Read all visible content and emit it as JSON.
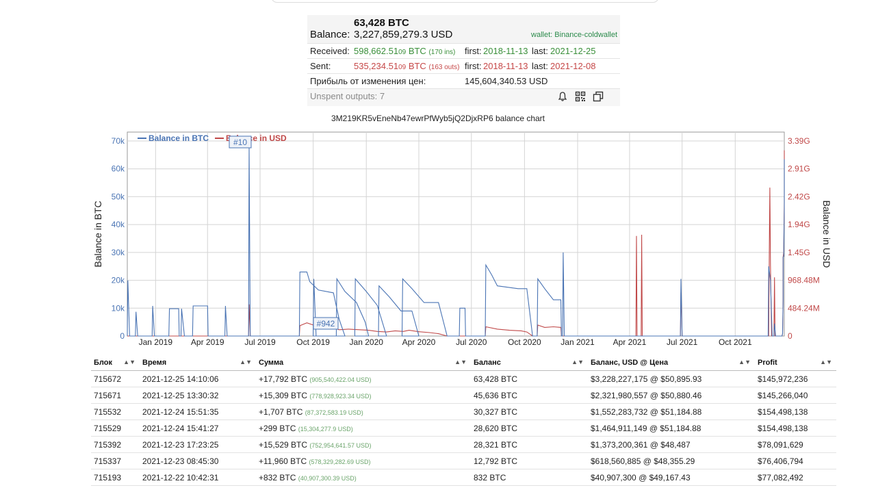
{
  "summary": {
    "btc": "63,428 BTC",
    "balance_label": "Balance:",
    "balance_usd": "3,227,859,279.3 USD",
    "wallet": "wallet: Binance-coldwallet",
    "received_label": "Received:",
    "received_main": "598,662.51",
    "received_sub": "09",
    "received_unit": " BTC",
    "received_ins": "(170 ins)",
    "received_first_label": "first:",
    "received_first": "2018-11-13",
    "received_last_label": "last:",
    "received_last": "2021-12-25",
    "sent_label": "Sent:",
    "sent_main": "535,234.51",
    "sent_sub": "09",
    "sent_unit": " BTC",
    "sent_outs": "(163 outs)",
    "sent_first_label": "first:",
    "sent_first": "2018-11-13",
    "sent_last_label": "last:",
    "sent_last": "2021-12-08",
    "profit_label": "Прибыль от изменения цен:",
    "profit_value": "145,604,340.53 USD",
    "unspent": "Unspent outputs: 7",
    "icons": [
      "bell-icon",
      "qr-code-icon",
      "copy-icon"
    ]
  },
  "chart_data": {
    "type": "line",
    "title": "3M219KR5vEneNb47ewrPfWyb5jQ2DjxRP6 balance chart",
    "ylabel": "Balance in BTC",
    "y2label": "Balance in USD",
    "x_ticks": [
      "Jan 2019",
      "Apr 2019",
      "Jul 2019",
      "Oct 2019",
      "Jan 2020",
      "Apr 2020",
      "Jul 2020",
      "Oct 2020",
      "Jan 2021",
      "Apr 2021",
      "Jul 2021",
      "Oct 2021"
    ],
    "y_ticks": [
      "0",
      "10k",
      "20k",
      "30k",
      "40k",
      "50k",
      "60k",
      "70k"
    ],
    "y2_ticks": [
      "0",
      "484.24M",
      "968.48M",
      "1.45G",
      "1.94G",
      "2.42G",
      "2.91G",
      "3.39G"
    ],
    "ylim": [
      0,
      70000
    ],
    "y2lim": [
      0,
      3390000000
    ],
    "xlim": [
      "2018-11-13",
      "2021-12-25"
    ],
    "legend": "top-left",
    "grid": true,
    "annotations": [
      "#10",
      "#942"
    ],
    "series": [
      {
        "name": "Balance in BTC",
        "color": "#4a74b4",
        "points": [
          [
            "2018-11-13",
            0
          ],
          [
            "2018-11-14",
            20000
          ],
          [
            "2018-11-17",
            0
          ],
          [
            "2018-11-27",
            0
          ],
          [
            "2018-11-28",
            8700
          ],
          [
            "2018-12-01",
            0
          ],
          [
            "2018-12-26",
            0
          ],
          [
            "2018-12-27",
            10800
          ],
          [
            "2018-12-30",
            0
          ],
          [
            "2019-01-24",
            0
          ],
          [
            "2019-01-25",
            9800
          ],
          [
            "2019-02-10",
            9800
          ],
          [
            "2019-02-11",
            0
          ],
          [
            "2019-02-14",
            0
          ],
          [
            "2019-02-15",
            9800
          ],
          [
            "2019-02-20",
            0
          ],
          [
            "2019-03-06",
            0
          ],
          [
            "2019-03-07",
            10800
          ],
          [
            "2019-04-01",
            10800
          ],
          [
            "2019-04-02",
            0
          ],
          [
            "2019-05-01",
            0
          ],
          [
            "2019-05-02",
            10800
          ],
          [
            "2019-05-05",
            0
          ],
          [
            "2019-06-11",
            0
          ],
          [
            "2019-06-12",
            67700
          ],
          [
            "2019-06-14",
            0
          ],
          [
            "2019-09-07",
            0
          ],
          [
            "2019-09-08",
            23000
          ],
          [
            "2019-09-20",
            23000
          ],
          [
            "2019-09-25",
            19500
          ],
          [
            "2019-10-10",
            16500
          ],
          [
            "2019-11-05",
            15500
          ],
          [
            "2019-11-15",
            6000
          ],
          [
            "2019-11-25",
            0
          ],
          [
            "2019-10-01",
            0
          ],
          [
            "2019-10-02",
            20500
          ],
          [
            "2019-10-06",
            0
          ],
          [
            "2019-11-10",
            0
          ],
          [
            "2019-11-11",
            20500
          ],
          [
            "2019-11-25",
            16000
          ],
          [
            "2019-12-15",
            12000
          ],
          [
            "2019-12-30",
            5000
          ],
          [
            "2020-01-05",
            0
          ],
          [
            "2019-12-12",
            0
          ],
          [
            "2019-12-13",
            20500
          ],
          [
            "2020-01-01",
            16000
          ],
          [
            "2020-01-20",
            11000
          ],
          [
            "2020-02-05",
            0
          ],
          [
            "2020-01-22",
            0
          ],
          [
            "2020-01-23",
            18000
          ],
          [
            "2020-02-10",
            14000
          ],
          [
            "2020-03-01",
            9000
          ],
          [
            "2020-03-20",
            9000
          ],
          [
            "2020-04-01",
            0
          ],
          [
            "2020-03-03",
            0
          ],
          [
            "2020-03-04",
            20500
          ],
          [
            "2020-03-20",
            17000
          ],
          [
            "2020-04-10",
            12000
          ],
          [
            "2020-05-05",
            12000
          ],
          [
            "2020-05-20",
            0
          ],
          [
            "2020-06-10",
            0
          ],
          [
            "2020-06-11",
            10000
          ],
          [
            "2020-06-20",
            10000
          ],
          [
            "2020-06-21",
            0
          ],
          [
            "2020-07-25",
            0
          ],
          [
            "2020-07-26",
            25500
          ],
          [
            "2020-08-05",
            22000
          ],
          [
            "2020-08-15",
            18000
          ],
          [
            "2020-09-20",
            17000
          ],
          [
            "2020-10-05",
            17000
          ],
          [
            "2020-10-15",
            0
          ],
          [
            "2020-10-23",
            0
          ],
          [
            "2020-10-24",
            20500
          ],
          [
            "2020-11-05",
            17000
          ],
          [
            "2020-11-20",
            13000
          ],
          [
            "2020-12-03",
            13000
          ],
          [
            "2020-12-04",
            0
          ],
          [
            "2020-12-06",
            0
          ],
          [
            "2020-12-07",
            30000
          ],
          [
            "2020-12-09",
            0
          ],
          [
            "2021-06-28",
            0
          ],
          [
            "2021-06-29",
            20500
          ],
          [
            "2021-07-01",
            0
          ],
          [
            "2021-11-27",
            0
          ],
          [
            "2021-11-28",
            25000
          ],
          [
            "2021-12-01",
            20000
          ],
          [
            "2021-12-04",
            0
          ],
          [
            "2021-12-07",
            0
          ],
          [
            "2021-12-08",
            4500
          ],
          [
            "2021-12-10",
            0
          ],
          [
            "2021-12-21",
            0
          ],
          [
            "2021-12-22",
            832
          ],
          [
            "2021-12-23",
            12792
          ],
          [
            "2021-12-23",
            28321
          ],
          [
            "2021-12-24",
            28620
          ],
          [
            "2021-12-24",
            30327
          ],
          [
            "2021-12-25",
            45636
          ],
          [
            "2021-12-25",
            63428
          ]
        ]
      },
      {
        "name": "Balance in USD",
        "color": "#c04848",
        "points": [
          [
            "2018-11-13",
            0
          ],
          [
            "2019-06-11",
            0
          ],
          [
            "2019-06-12",
            550000000
          ],
          [
            "2019-06-14",
            0
          ],
          [
            "2019-09-07",
            0
          ],
          [
            "2019-09-08",
            180000000
          ],
          [
            "2019-09-20",
            230000000
          ],
          [
            "2019-10-10",
            160000000
          ],
          [
            "2019-11-01",
            150000000
          ],
          [
            "2019-11-15",
            110000000
          ],
          [
            "2019-12-01",
            120000000
          ],
          [
            "2019-12-20",
            110000000
          ],
          [
            "2020-01-05",
            100000000
          ],
          [
            "2020-01-20",
            80000000
          ],
          [
            "2020-02-05",
            70000000
          ],
          [
            "2020-02-20",
            90000000
          ],
          [
            "2020-03-05",
            80000000
          ],
          [
            "2020-03-15",
            100000000
          ],
          [
            "2020-04-01",
            75000000
          ],
          [
            "2020-04-20",
            60000000
          ],
          [
            "2020-05-05",
            40000000
          ],
          [
            "2020-05-20",
            0
          ],
          [
            "2020-07-25",
            0
          ],
          [
            "2020-07-26",
            160000000
          ],
          [
            "2020-08-15",
            120000000
          ],
          [
            "2020-09-05",
            100000000
          ],
          [
            "2020-09-25",
            90000000
          ],
          [
            "2020-10-05",
            70000000
          ],
          [
            "2020-10-15",
            0
          ],
          [
            "2020-10-23",
            0
          ],
          [
            "2020-10-24",
            190000000
          ],
          [
            "2020-11-05",
            150000000
          ],
          [
            "2020-11-20",
            160000000
          ],
          [
            "2020-12-03",
            150000000
          ],
          [
            "2020-12-04",
            0
          ],
          [
            "2021-04-12",
            0
          ],
          [
            "2021-04-13",
            1740000000
          ],
          [
            "2021-04-14",
            0
          ],
          [
            "2021-04-21",
            0
          ],
          [
            "2021-04-22",
            1760000000
          ],
          [
            "2021-04-23",
            0
          ],
          [
            "2021-06-28",
            0
          ],
          [
            "2021-06-29",
            760000000
          ],
          [
            "2021-07-01",
            0
          ],
          [
            "2021-11-28",
            0
          ],
          [
            "2021-11-29",
            1560000000
          ],
          [
            "2021-11-30",
            2580000000
          ],
          [
            "2021-12-01",
            1240000000
          ],
          [
            "2021-12-03",
            0
          ],
          [
            "2021-12-07",
            0
          ],
          [
            "2021-12-08",
            1020000000
          ],
          [
            "2021-12-09",
            0
          ],
          [
            "2021-12-21",
            0
          ],
          [
            "2021-12-22",
            40900000
          ],
          [
            "2021-12-23",
            618560000
          ],
          [
            "2021-12-23",
            1373200000
          ],
          [
            "2021-12-24",
            1464900000
          ],
          [
            "2021-12-24",
            1552280000
          ],
          [
            "2021-12-25",
            2321980000
          ],
          [
            "2021-12-25",
            3228227175
          ]
        ]
      }
    ]
  },
  "table": {
    "headers": [
      "Блок",
      "Время",
      "Сумма",
      "Баланс",
      "Баланс, USD @ Цена",
      "Profit"
    ],
    "rows": [
      {
        "block": "715672",
        "time": "2021-12-25 14:10:06",
        "amount": "+17,792 BTC",
        "amount_usd": "(905,540,422.04 USD)",
        "balance": "63,428 BTC",
        "balance_usd": "$3,228,227,175 @ $50,895.93",
        "profit": "$145,972,236"
      },
      {
        "block": "715671",
        "time": "2021-12-25 13:30:32",
        "amount": "+15,309 BTC",
        "amount_usd": "(778,928,923.34 USD)",
        "balance": "45,636 BTC",
        "balance_usd": "$2,321,980,557 @ $50,880.46",
        "profit": "$145,266,040"
      },
      {
        "block": "715532",
        "time": "2021-12-24 15:51:35",
        "amount": "+1,707 BTC",
        "amount_usd": "(87,372,583.19 USD)",
        "balance": "30,327 BTC",
        "balance_usd": "$1,552,283,732 @ $51,184.88",
        "profit": "$154,498,138"
      },
      {
        "block": "715529",
        "time": "2021-12-24 15:41:27",
        "amount": "+299 BTC",
        "amount_usd": "(15,304,277.9 USD)",
        "balance": "28,620 BTC",
        "balance_usd": "$1,464,911,149 @ $51,184.88",
        "profit": "$154,498,138"
      },
      {
        "block": "715392",
        "time": "2021-12-23 17:23:25",
        "amount": "+15,529 BTC",
        "amount_usd": "(752,954,641.57 USD)",
        "balance": "28,321 BTC",
        "balance_usd": "$1,373,200,361 @ $48,487",
        "profit": "$78,091,629"
      },
      {
        "block": "715337",
        "time": "2021-12-23 08:45:30",
        "amount": "+11,960 BTC",
        "amount_usd": "(578,329,282.69 USD)",
        "balance": "12,792 BTC",
        "balance_usd": "$618,560,885 @ $48,355.29",
        "profit": "$76,406,794"
      },
      {
        "block": "715193",
        "time": "2021-12-22 10:42:31",
        "amount": "+832 BTC",
        "amount_usd": "(40,907,300.39 USD)",
        "balance": "832 BTC",
        "balance_usd": "$40,907,300 @ $49,167.43",
        "profit": "$77,082,492"
      }
    ]
  }
}
